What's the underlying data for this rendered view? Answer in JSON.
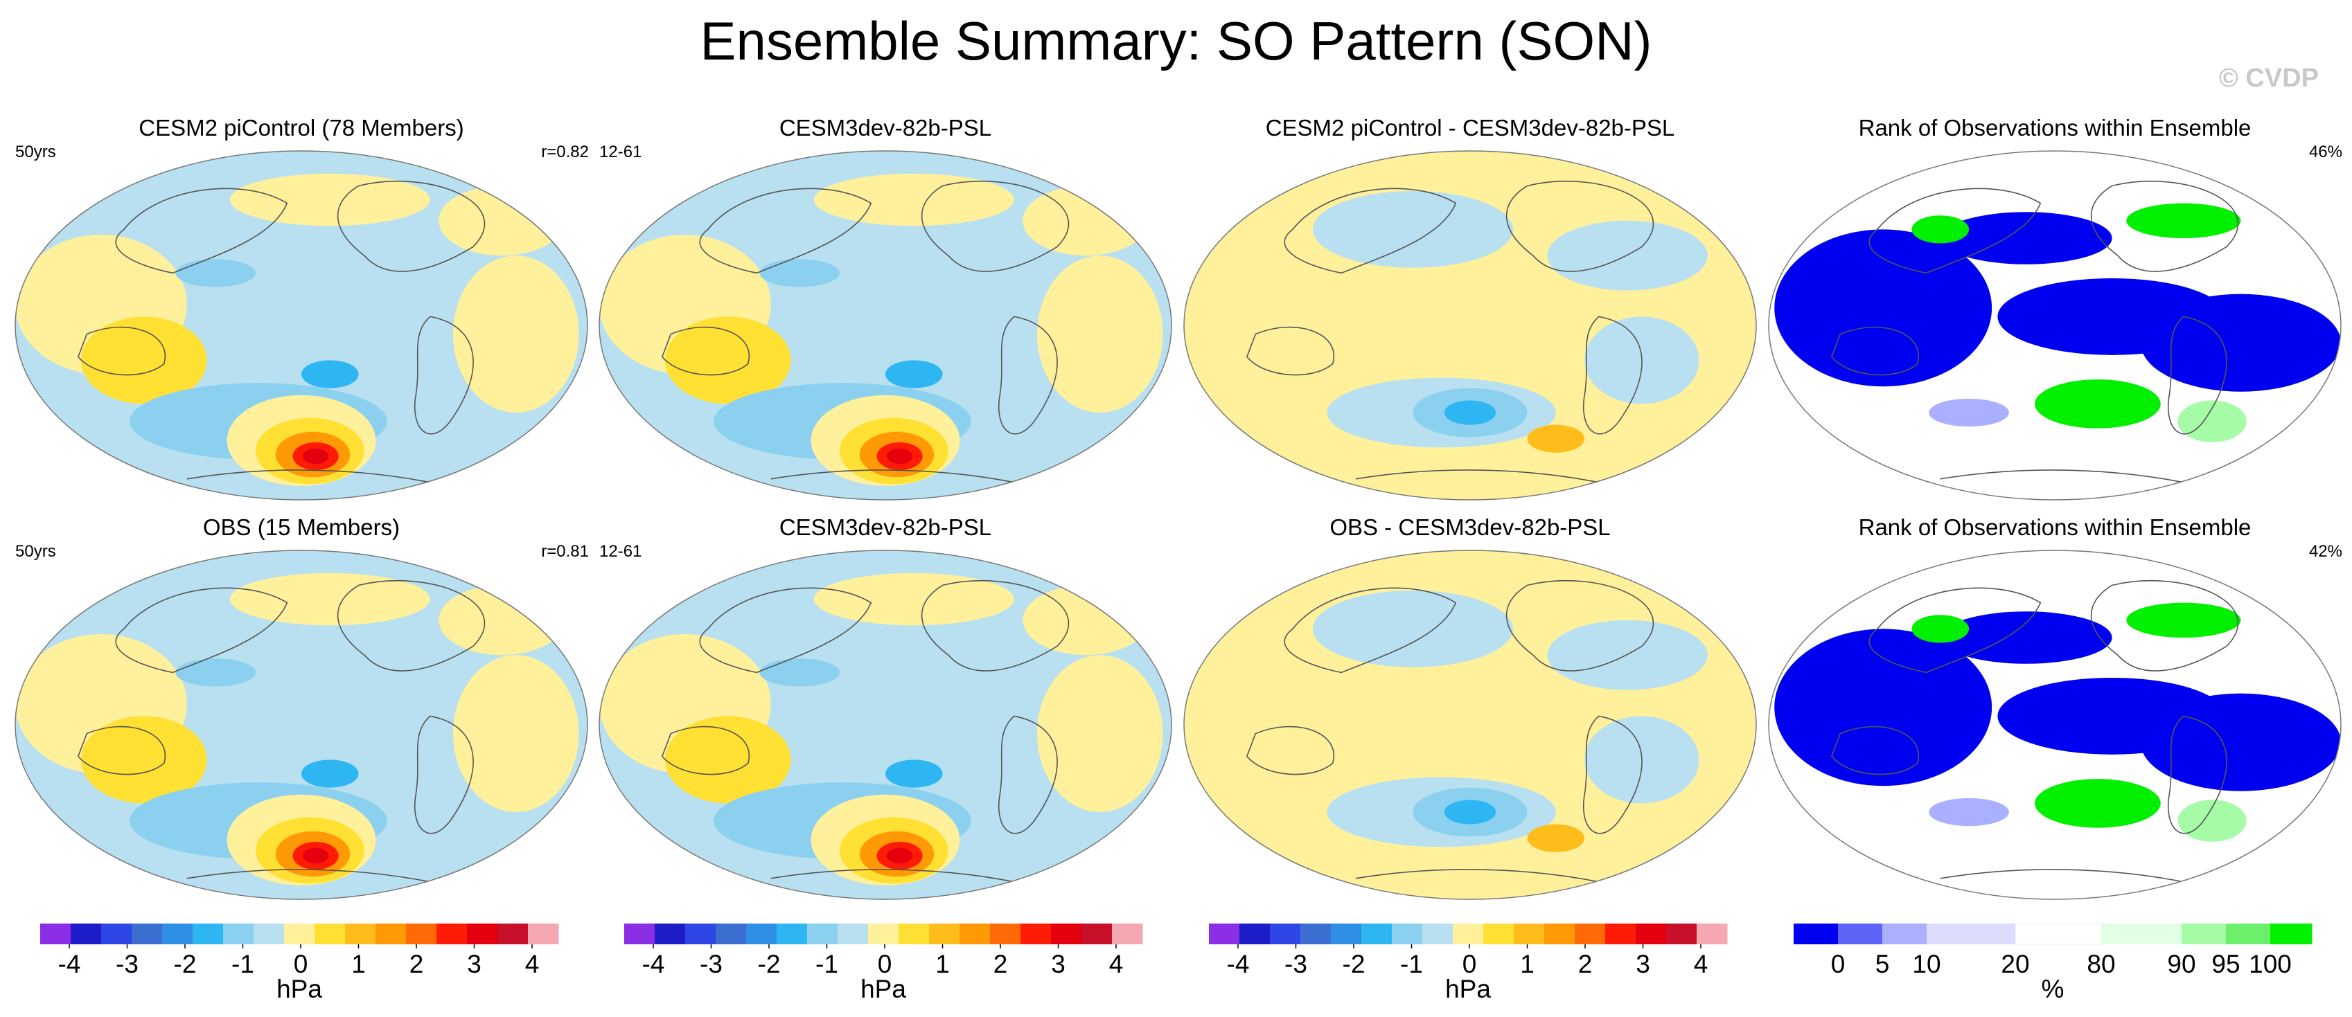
{
  "title": "Ensemble Summary: SO Pattern (SON)",
  "credit": "© CVDP",
  "colors": {
    "psl_levels": [
      "#8b2ee6",
      "#1c1cc8",
      "#2e46e6",
      "#3c6ed2",
      "#2f8fe6",
      "#2eb6f3",
      "#8cd0f0",
      "#b8e0f0",
      "#fff09c",
      "#ffe033",
      "#ffbd1c",
      "#ff9a06",
      "#ff6a06",
      "#ff1c06",
      "#e4000e",
      "#c8102a",
      "#f5a8b2"
    ],
    "rank_levels": [
      "#0000f0",
      "#5e64f8",
      "#aab0ff",
      "#dcdcfc",
      "#ffffff",
      "#e2ffe4",
      "#a6fca6",
      "#6cf06c",
      "#00f000"
    ],
    "land_line": "#555555"
  },
  "chart_data": [
    {
      "type": "heatmap",
      "title": "CESM2 piControl (78 Members)",
      "left_label": "50yrs",
      "right_label": "r=0.82",
      "pattern": "model",
      "units": "hPa"
    },
    {
      "type": "heatmap",
      "title": "CESM3dev-82b-PSL",
      "left_label": "12-61",
      "right_label": "",
      "pattern": "model",
      "units": "hPa"
    },
    {
      "type": "heatmap",
      "title": "CESM2 piControl - CESM3dev-82b-PSL",
      "left_label": "",
      "right_label": "",
      "pattern": "diff",
      "units": "hPa"
    },
    {
      "type": "heatmap",
      "title": "Rank of Observations within Ensemble",
      "left_label": "",
      "right_label": "46%",
      "pattern": "rank",
      "units": "%"
    },
    {
      "type": "heatmap",
      "title": "OBS (15 Members)",
      "left_label": "50yrs",
      "right_label": "r=0.81",
      "pattern": "model",
      "units": "hPa"
    },
    {
      "type": "heatmap",
      "title": "CESM3dev-82b-PSL",
      "left_label": "12-61",
      "right_label": "",
      "pattern": "model",
      "units": "hPa"
    },
    {
      "type": "heatmap",
      "title": "OBS - CESM3dev-82b-PSL",
      "left_label": "",
      "right_label": "",
      "pattern": "diff",
      "units": "hPa"
    },
    {
      "type": "heatmap",
      "title": "Rank of Observations within Ensemble",
      "left_label": "",
      "right_label": "42%",
      "pattern": "rank",
      "units": "%"
    }
  ],
  "colorbars": [
    {
      "kind": "psl",
      "ticks": [
        "-4",
        "-3",
        "-2",
        "-1",
        "0",
        "1",
        "2",
        "3",
        "4"
      ],
      "unit": "hPa"
    },
    {
      "kind": "psl",
      "ticks": [
        "-4",
        "-3",
        "-2",
        "-1",
        "0",
        "1",
        "2",
        "3",
        "4"
      ],
      "unit": "hPa"
    },
    {
      "kind": "psl",
      "ticks": [
        "-4",
        "-3",
        "-2",
        "-1",
        "0",
        "1",
        "2",
        "3",
        "4"
      ],
      "unit": "hPa"
    },
    {
      "kind": "rank",
      "ticks": [
        "0",
        "5",
        "10",
        "20",
        "80",
        "90",
        "95",
        "100"
      ],
      "unit": "%"
    }
  ]
}
